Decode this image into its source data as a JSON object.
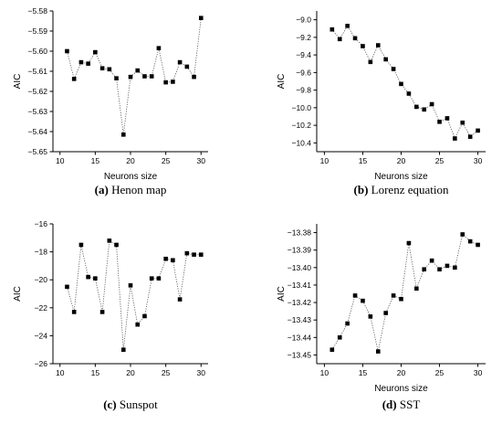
{
  "chart_data": [
    {
      "type": "line",
      "caption_letter": "(a)",
      "caption_text": " Henon map",
      "xlabel": "Neurons size",
      "ylabel": "AIC",
      "xlim": [
        9,
        31
      ],
      "ylim": [
        -5.65,
        -5.58
      ],
      "xticks": [
        10,
        15,
        20,
        25,
        30
      ],
      "yticks": [
        -5.65,
        -5.64,
        -5.63,
        -5.62,
        -5.61,
        -5.6,
        -5.59,
        -5.58
      ],
      "ytick_decimals": 2,
      "x": [
        11,
        12,
        13,
        14,
        15,
        16,
        17,
        18,
        19,
        20,
        21,
        22,
        23,
        24,
        25,
        26,
        27,
        28,
        29,
        30
      ],
      "y": [
        -5.6,
        -5.6138,
        -5.6055,
        -5.6062,
        -5.6005,
        -5.6085,
        -5.609,
        -5.6135,
        -5.6415,
        -5.6128,
        -5.6096,
        -5.6125,
        -5.6125,
        -5.5985,
        -5.6155,
        -5.6152,
        -5.6055,
        -5.6077,
        -5.6128,
        -5.5835
      ]
    },
    {
      "type": "line",
      "caption_letter": "(b)",
      "caption_text": " Lorenz equation",
      "xlabel": "Neurons size",
      "ylabel": "AIC",
      "xlim": [
        9,
        31
      ],
      "ylim": [
        -10.5,
        -8.9
      ],
      "xticks": [
        10,
        15,
        20,
        25,
        30
      ],
      "yticks": [
        -10.4,
        -10.2,
        -10.0,
        -9.8,
        -9.6,
        -9.4,
        -9.2,
        -9.0
      ],
      "ytick_decimals": 1,
      "x": [
        11,
        12,
        13,
        14,
        15,
        16,
        17,
        18,
        19,
        20,
        21,
        22,
        23,
        24,
        25,
        26,
        27,
        28,
        29,
        30
      ],
      "y": [
        -9.11,
        -9.22,
        -9.07,
        -9.21,
        -9.3,
        -9.48,
        -9.29,
        -9.45,
        -9.56,
        -9.73,
        -9.84,
        -9.99,
        -10.02,
        -9.96,
        -10.16,
        -10.12,
        -10.35,
        -10.17,
        -10.33,
        -10.26
      ]
    },
    {
      "type": "line",
      "caption_letter": "(c)",
      "caption_text": " Sunspot",
      "xlabel": "",
      "ylabel": "AIC",
      "xlim": [
        9,
        31
      ],
      "ylim": [
        -26,
        -16
      ],
      "xticks": [
        10,
        15,
        20,
        25,
        30
      ],
      "yticks": [
        -26,
        -24,
        -22,
        -20,
        -18,
        -16
      ],
      "ytick_decimals": 0,
      "x": [
        11,
        12,
        13,
        14,
        15,
        16,
        17,
        18,
        19,
        20,
        21,
        22,
        23,
        24,
        25,
        26,
        27,
        28,
        29,
        30
      ],
      "y": [
        -20.5,
        -22.3,
        -17.5,
        -19.8,
        -19.9,
        -22.3,
        -17.2,
        -17.5,
        -25.0,
        -20.4,
        -23.2,
        -22.6,
        -19.9,
        -19.9,
        -18.5,
        -18.6,
        -21.4,
        -18.1,
        -18.2,
        -18.2
      ]
    },
    {
      "type": "line",
      "caption_letter": "(d)",
      "caption_text": " SST",
      "xlabel": "Neurons size",
      "ylabel": "AIC",
      "xlim": [
        9,
        31
      ],
      "ylim": [
        -13.455,
        -13.375
      ],
      "xticks": [
        10,
        15,
        20,
        25,
        30
      ],
      "yticks": [
        -13.45,
        -13.44,
        -13.43,
        -13.42,
        -13.41,
        -13.4,
        -13.39,
        -13.38
      ],
      "ytick_decimals": 2,
      "x": [
        11,
        12,
        13,
        14,
        15,
        16,
        17,
        18,
        19,
        20,
        21,
        22,
        23,
        24,
        25,
        26,
        27,
        28,
        29,
        30
      ],
      "y": [
        -13.447,
        -13.44,
        -13.432,
        -13.416,
        -13.419,
        -13.428,
        -13.448,
        -13.426,
        -13.416,
        -13.418,
        -13.386,
        -13.412,
        -13.401,
        -13.396,
        -13.401,
        -13.399,
        -13.4,
        -13.381,
        -13.385,
        -13.387
      ]
    }
  ]
}
